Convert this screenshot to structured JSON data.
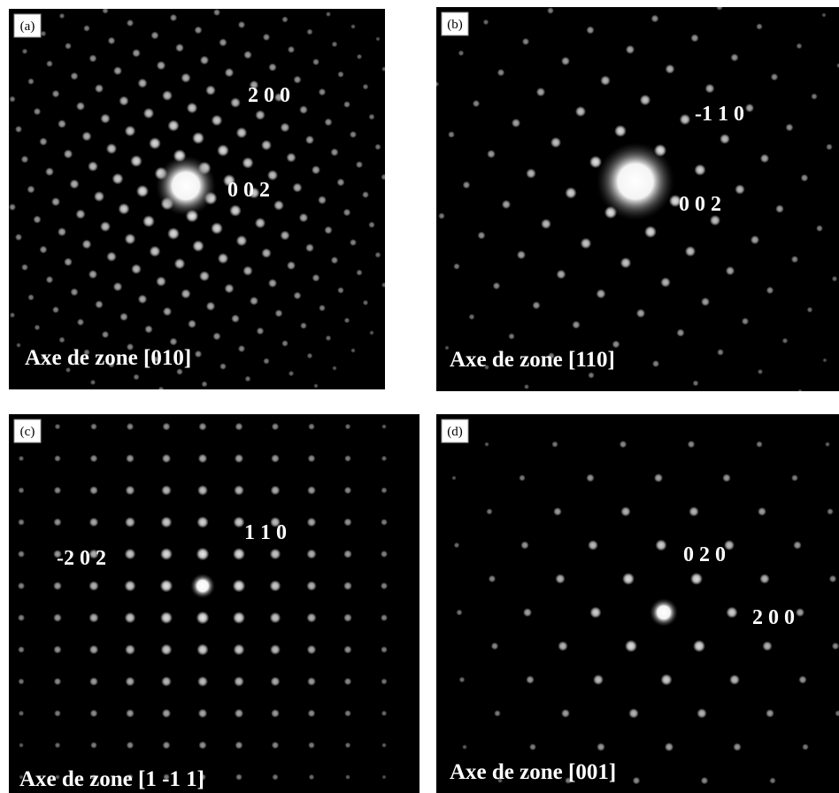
{
  "panels": [
    {
      "tag": "(a)",
      "spot_labels": [
        "2 0 0",
        "0 0 2"
      ],
      "zone": "Axe de zone [010]"
    },
    {
      "tag": "(b)",
      "spot_labels": [
        "-1 1 0",
        "0 0 2"
      ],
      "zone": "Axe de zone [110]"
    },
    {
      "tag": "(c)",
      "spot_labels": [
        "1 1 0",
        "-2 0 2"
      ],
      "zone": "Axe de zone [1 -1 1]"
    },
    {
      "tag": "(d)",
      "spot_labels": [
        "0 2 0",
        "2 0 0"
      ],
      "zone": "Axe de zone [001]"
    }
  ]
}
